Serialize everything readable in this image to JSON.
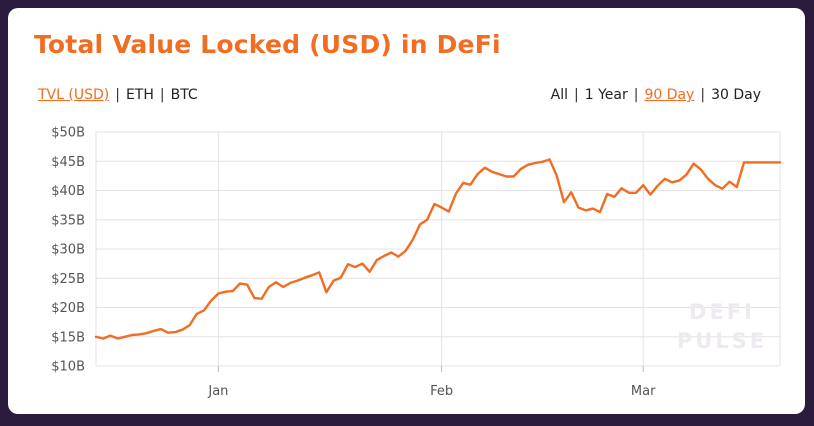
{
  "chart_title": "Total Value Locked (USD) in DeFi",
  "currency_toggle": [
    {
      "label": "TVL (USD)",
      "active": true
    },
    {
      "label": "ETH",
      "active": false
    },
    {
      "label": "BTC",
      "active": false
    }
  ],
  "range_toggle": [
    {
      "label": "All",
      "active": false
    },
    {
      "label": "1 Year",
      "active": false
    },
    {
      "label": "90 Day",
      "active": true
    },
    {
      "label": "30 Day",
      "active": false
    }
  ],
  "separator": "|",
  "watermark": [
    "DEFI",
    "PULSE"
  ],
  "colors": {
    "accent": "#f26c21",
    "background": "#2b1b3d",
    "grid": "#e3e3e3"
  },
  "chart_data": {
    "type": "line",
    "title": "Total Value Locked (USD) in DeFi",
    "xlabel": "",
    "ylabel": "",
    "ylim": [
      10,
      50
    ],
    "yticks": [
      10,
      15,
      20,
      25,
      30,
      35,
      40,
      45,
      50
    ],
    "ytick_labels": [
      "$10B",
      "$15B",
      "$20B",
      "$25B",
      "$30B",
      "$35B",
      "$40B",
      "$45B",
      "$50B"
    ],
    "xlim": [
      "2020-12-15",
      "2021-03-20"
    ],
    "xticks": [
      {
        "label": "Jan",
        "date": "2021-01-01"
      },
      {
        "label": "Feb",
        "date": "2021-02-01"
      },
      {
        "label": "Mar",
        "date": "2021-03-01"
      }
    ],
    "grid": true,
    "series": [
      {
        "color": "#f26c21",
        "x": [
          "2020-12-15",
          "2020-12-16",
          "2020-12-17",
          "2020-12-18",
          "2020-12-19",
          "2020-12-20",
          "2020-12-21",
          "2020-12-22",
          "2020-12-23",
          "2020-12-24",
          "2020-12-25",
          "2020-12-26",
          "2020-12-27",
          "2020-12-28",
          "2020-12-29",
          "2020-12-30",
          "2020-12-31",
          "2021-01-01",
          "2021-01-02",
          "2021-01-03",
          "2021-01-04",
          "2021-01-05",
          "2021-01-06",
          "2021-01-07",
          "2021-01-08",
          "2021-01-09",
          "2021-01-10",
          "2021-01-11",
          "2021-01-12",
          "2021-01-13",
          "2021-01-14",
          "2021-01-15",
          "2021-01-16",
          "2021-01-17",
          "2021-01-18",
          "2021-01-19",
          "2021-01-20",
          "2021-01-21",
          "2021-01-22",
          "2021-01-23",
          "2021-01-24",
          "2021-01-25",
          "2021-01-26",
          "2021-01-27",
          "2021-01-28",
          "2021-01-29",
          "2021-01-30",
          "2021-01-31",
          "2021-02-01",
          "2021-02-02",
          "2021-02-03",
          "2021-02-04",
          "2021-02-05",
          "2021-02-06",
          "2021-02-07",
          "2021-02-08",
          "2021-02-09",
          "2021-02-10",
          "2021-02-11",
          "2021-02-12",
          "2021-02-13",
          "2021-02-14",
          "2021-02-15",
          "2021-02-16",
          "2021-02-17",
          "2021-02-18",
          "2021-02-19",
          "2021-02-20",
          "2021-02-21",
          "2021-02-22",
          "2021-02-23",
          "2021-02-24",
          "2021-02-25",
          "2021-02-26",
          "2021-02-27",
          "2021-02-28",
          "2021-03-01",
          "2021-03-02",
          "2021-03-03",
          "2021-03-04",
          "2021-03-05",
          "2021-03-06",
          "2021-03-07",
          "2021-03-08",
          "2021-03-09",
          "2021-03-10",
          "2021-03-11",
          "2021-03-12",
          "2021-03-13",
          "2021-03-14",
          "2021-03-15",
          "2021-03-16",
          "2021-03-17",
          "2021-03-18",
          "2021-03-19",
          "2021-03-20"
        ],
        "y": [
          15.0,
          14.7,
          15.2,
          14.7,
          15.0,
          15.3,
          15.4,
          15.6,
          16.0,
          16.3,
          15.7,
          15.8,
          16.2,
          17.0,
          18.9,
          19.5,
          21.2,
          22.4,
          22.7,
          22.8,
          24.1,
          23.9,
          21.6,
          21.5,
          23.5,
          24.3,
          23.5,
          24.2,
          24.6,
          25.1,
          25.5,
          26.0,
          22.6,
          24.6,
          25.1,
          27.4,
          26.9,
          27.5,
          26.1,
          28.1,
          28.8,
          29.4,
          28.7,
          29.7,
          31.6,
          34.2,
          35.0,
          37.7,
          37.1,
          36.4,
          39.5,
          41.3,
          41.0,
          42.8,
          43.9,
          43.2,
          42.8,
          42.4,
          42.4,
          43.7,
          44.4,
          44.7,
          44.9,
          45.3,
          42.5,
          38.0,
          39.7,
          37.1,
          36.6,
          36.9,
          36.3,
          39.4,
          38.9,
          40.4,
          39.6,
          39.6,
          40.9,
          39.3,
          40.8,
          42.0,
          41.4,
          41.7,
          42.7,
          44.6,
          43.6,
          42.0,
          40.9,
          40.3,
          41.5,
          40.6,
          44.8,
          44.8,
          44.8,
          44.8,
          44.8,
          44.8
        ]
      }
    ]
  }
}
